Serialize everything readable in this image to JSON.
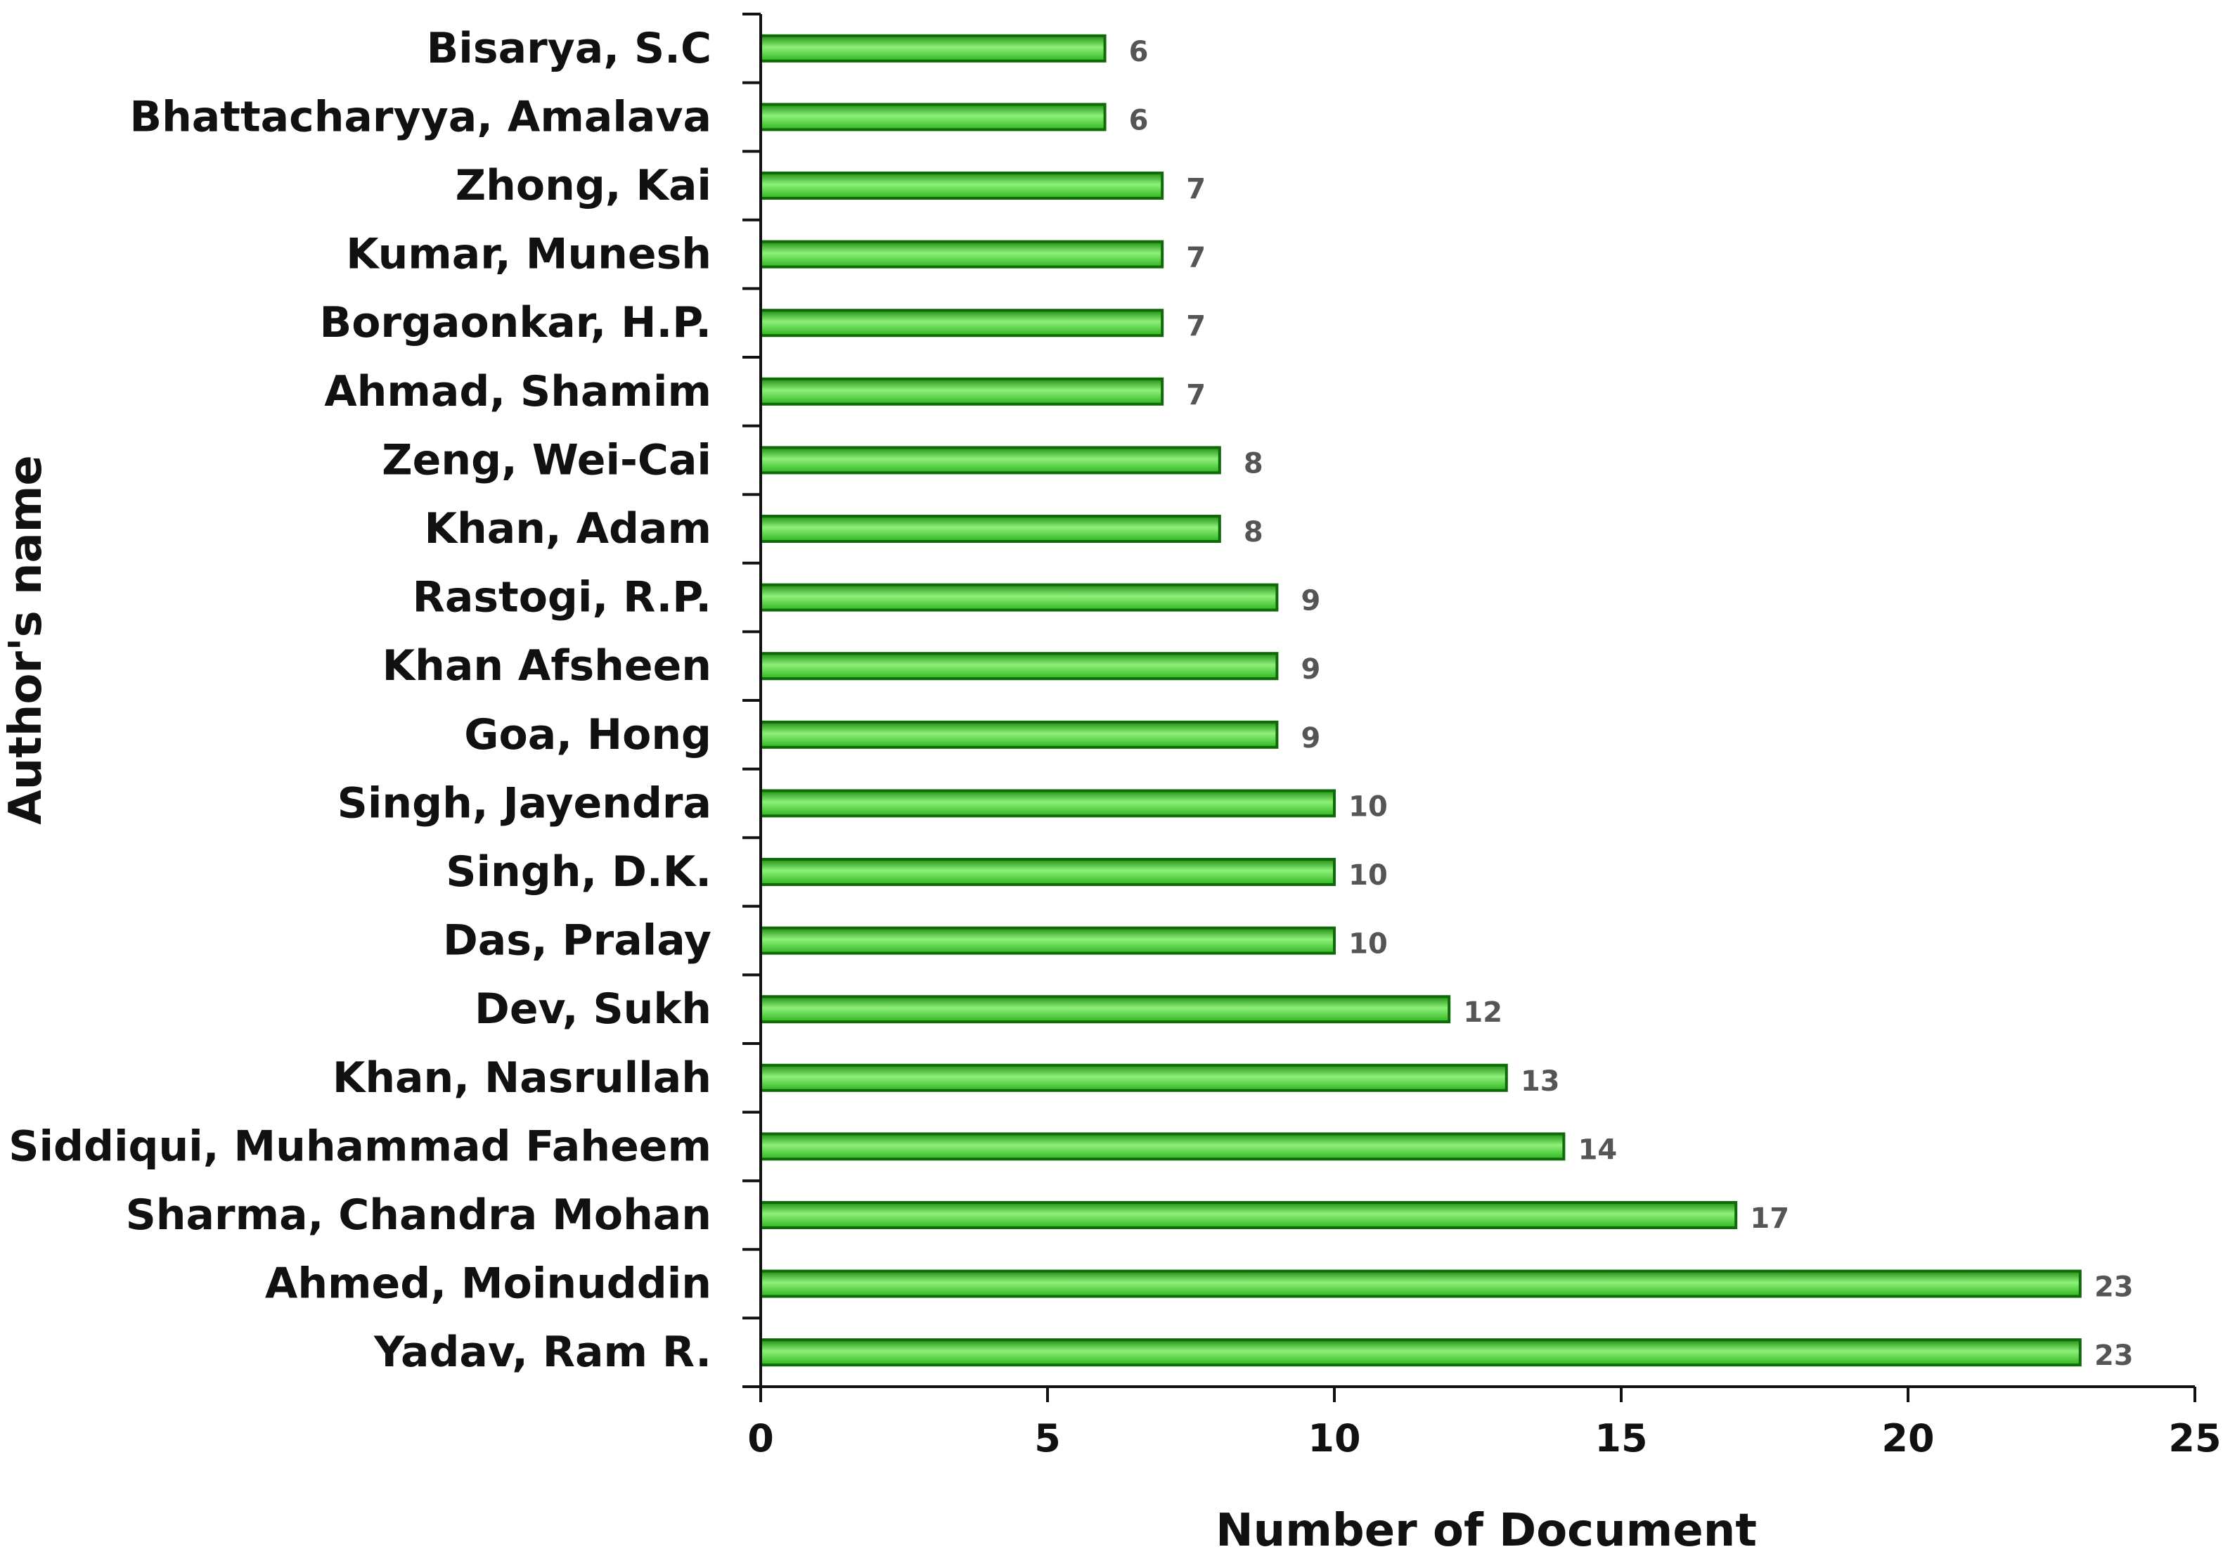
{
  "chart_data": {
    "type": "bar",
    "orientation": "horizontal",
    "categories": [
      "Yadav, Ram R.",
      "Ahmed, Moinuddin",
      "Sharma, Chandra Mohan",
      "Siddiqui, Muhammad Faheem",
      "Khan, Nasrullah",
      "Dev, Sukh",
      "Das, Pralay",
      "Singh, D.K.",
      "Singh, Jayendra",
      "Goa, Hong",
      "Khan Afsheen",
      "Rastogi, R.P.",
      "Khan, Adam",
      "Zeng, Wei-Cai",
      "Ahmad, Shamim",
      "Borgaonkar, H.P.",
      "Kumar, Munesh",
      "Zhong, Kai",
      "Bhattacharyya, Amalava",
      "Bisarya, S.C"
    ],
    "values": [
      23,
      23,
      17,
      14,
      13,
      12,
      10,
      10,
      10,
      9,
      9,
      9,
      8,
      8,
      7,
      7,
      7,
      7,
      6,
      6
    ],
    "xlabel": "Number of Document",
    "ylabel": "Author's name",
    "xlim": [
      0,
      25
    ],
    "xticks": [
      0,
      5,
      10,
      15,
      20,
      25
    ],
    "grid": false,
    "legend": "none",
    "colors": {
      "bar_light": "#8ef07a",
      "bar_mid": "#33cc22",
      "bar_dark": "#1f8f12",
      "bar_border": "#0f6a08",
      "axis": "#111111",
      "value_label": "#555555"
    }
  }
}
